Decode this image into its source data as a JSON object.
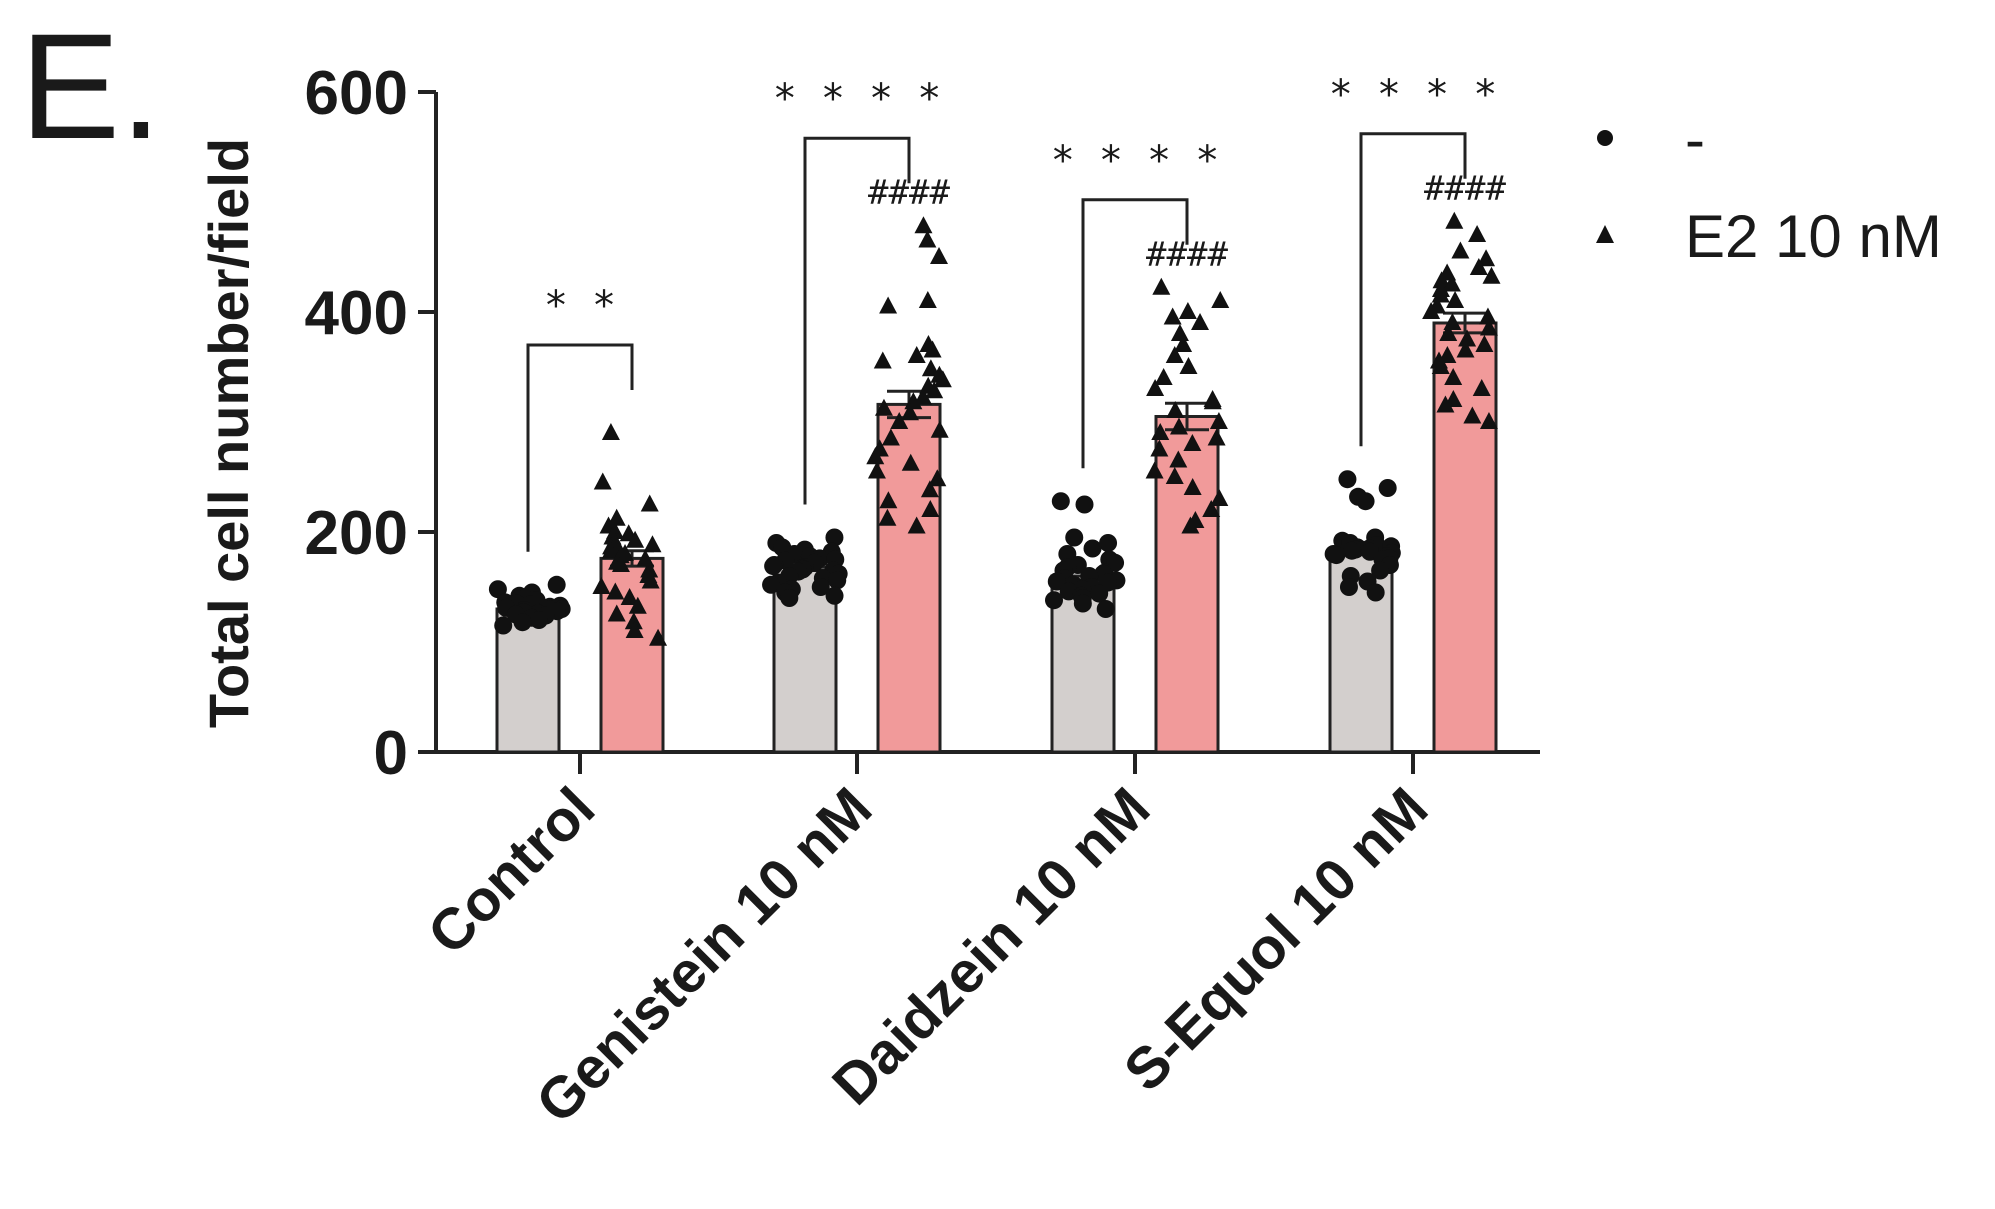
{
  "panel_label": "E.",
  "chart_data": {
    "type": "bar",
    "ylabel": "Total cell number/field",
    "xlabel": "",
    "ylim": [
      0,
      600
    ],
    "yticks": [
      0,
      200,
      400,
      600
    ],
    "ytick_labels": [
      "0",
      "200",
      "400",
      "600"
    ],
    "categories": [
      "Control",
      "Genistein 10 nM",
      "Daidzein 10 nM",
      "S-Equol 10 nM"
    ],
    "series": [
      {
        "name": "-",
        "marker": "circle",
        "color": "#d3cfcd",
        "values": [
          130,
          168,
          160,
          185
        ],
        "sem": [
          3,
          3,
          4,
          4
        ],
        "points": [
          [
            152,
            148,
            145,
            142,
            140,
            138,
            136,
            135,
            134,
            133,
            132,
            131,
            130,
            130,
            129,
            128,
            127,
            126,
            125,
            124,
            122,
            120,
            118,
            115
          ],
          [
            195,
            190,
            186,
            184,
            182,
            180,
            178,
            176,
            175,
            174,
            172,
            170,
            169,
            168,
            167,
            166,
            165,
            164,
            162,
            160,
            158,
            156,
            154,
            152,
            150,
            148,
            145,
            142,
            140
          ],
          [
            228,
            225,
            195,
            190,
            185,
            180,
            175,
            172,
            170,
            168,
            165,
            163,
            162,
            160,
            158,
            156,
            155,
            154,
            152,
            150,
            148,
            146,
            144,
            142,
            140,
            138,
            135,
            130
          ],
          [
            248,
            240,
            232,
            228,
            195,
            192,
            190,
            188,
            187,
            186,
            185,
            184,
            183,
            182,
            181,
            180,
            179,
            178,
            176,
            175,
            170,
            165,
            160,
            155,
            150,
            145
          ]
        ]
      },
      {
        "name": "E2 10 nM",
        "marker": "triangle",
        "color": "#f19a9a",
        "values": [
          176,
          316,
          305,
          390
        ],
        "sem": [
          7,
          12,
          12,
          9
        ],
        "points": [
          [
            290,
            245,
            225,
            212,
            205,
            200,
            198,
            195,
            192,
            190,
            188,
            186,
            184,
            182,
            180,
            178,
            175,
            172,
            170,
            165,
            160,
            155,
            150,
            145,
            140,
            132,
            125,
            118,
            110,
            103
          ],
          [
            478,
            465,
            450,
            410,
            405,
            370,
            365,
            360,
            355,
            348,
            342,
            338,
            332,
            328,
            322,
            318,
            312,
            308,
            300,
            292,
            285,
            275,
            268,
            262,
            255,
            248,
            238,
            228,
            220,
            212,
            205
          ],
          [
            422,
            410,
            400,
            395,
            390,
            380,
            370,
            360,
            350,
            340,
            330,
            320,
            318,
            310,
            300,
            295,
            290,
            285,
            280,
            275,
            265,
            255,
            250,
            240,
            230,
            220,
            210,
            205
          ],
          [
            482,
            470,
            455,
            448,
            440,
            435,
            432,
            428,
            425,
            420,
            415,
            410,
            405,
            400,
            395,
            390,
            385,
            380,
            375,
            370,
            365,
            360,
            355,
            350,
            340,
            330,
            320,
            315,
            305,
            300
          ]
        ]
      }
    ],
    "comparisons": [
      {
        "category": "Control",
        "label": "* *"
      },
      {
        "category": "Genistein 10 nM",
        "label": "* * * *"
      },
      {
        "category": "Daidzein 10 nM",
        "label": "* * * *"
      },
      {
        "category": "S-Equol 10 nM",
        "label": "* * * *"
      }
    ],
    "hash_labels": [
      "",
      "####",
      "####",
      "####"
    ],
    "legend": {
      "placement": "top-right",
      "entries": [
        {
          "label": "-",
          "marker": "circle"
        },
        {
          "label": "E2 10 nM",
          "marker": "triangle"
        }
      ]
    }
  }
}
